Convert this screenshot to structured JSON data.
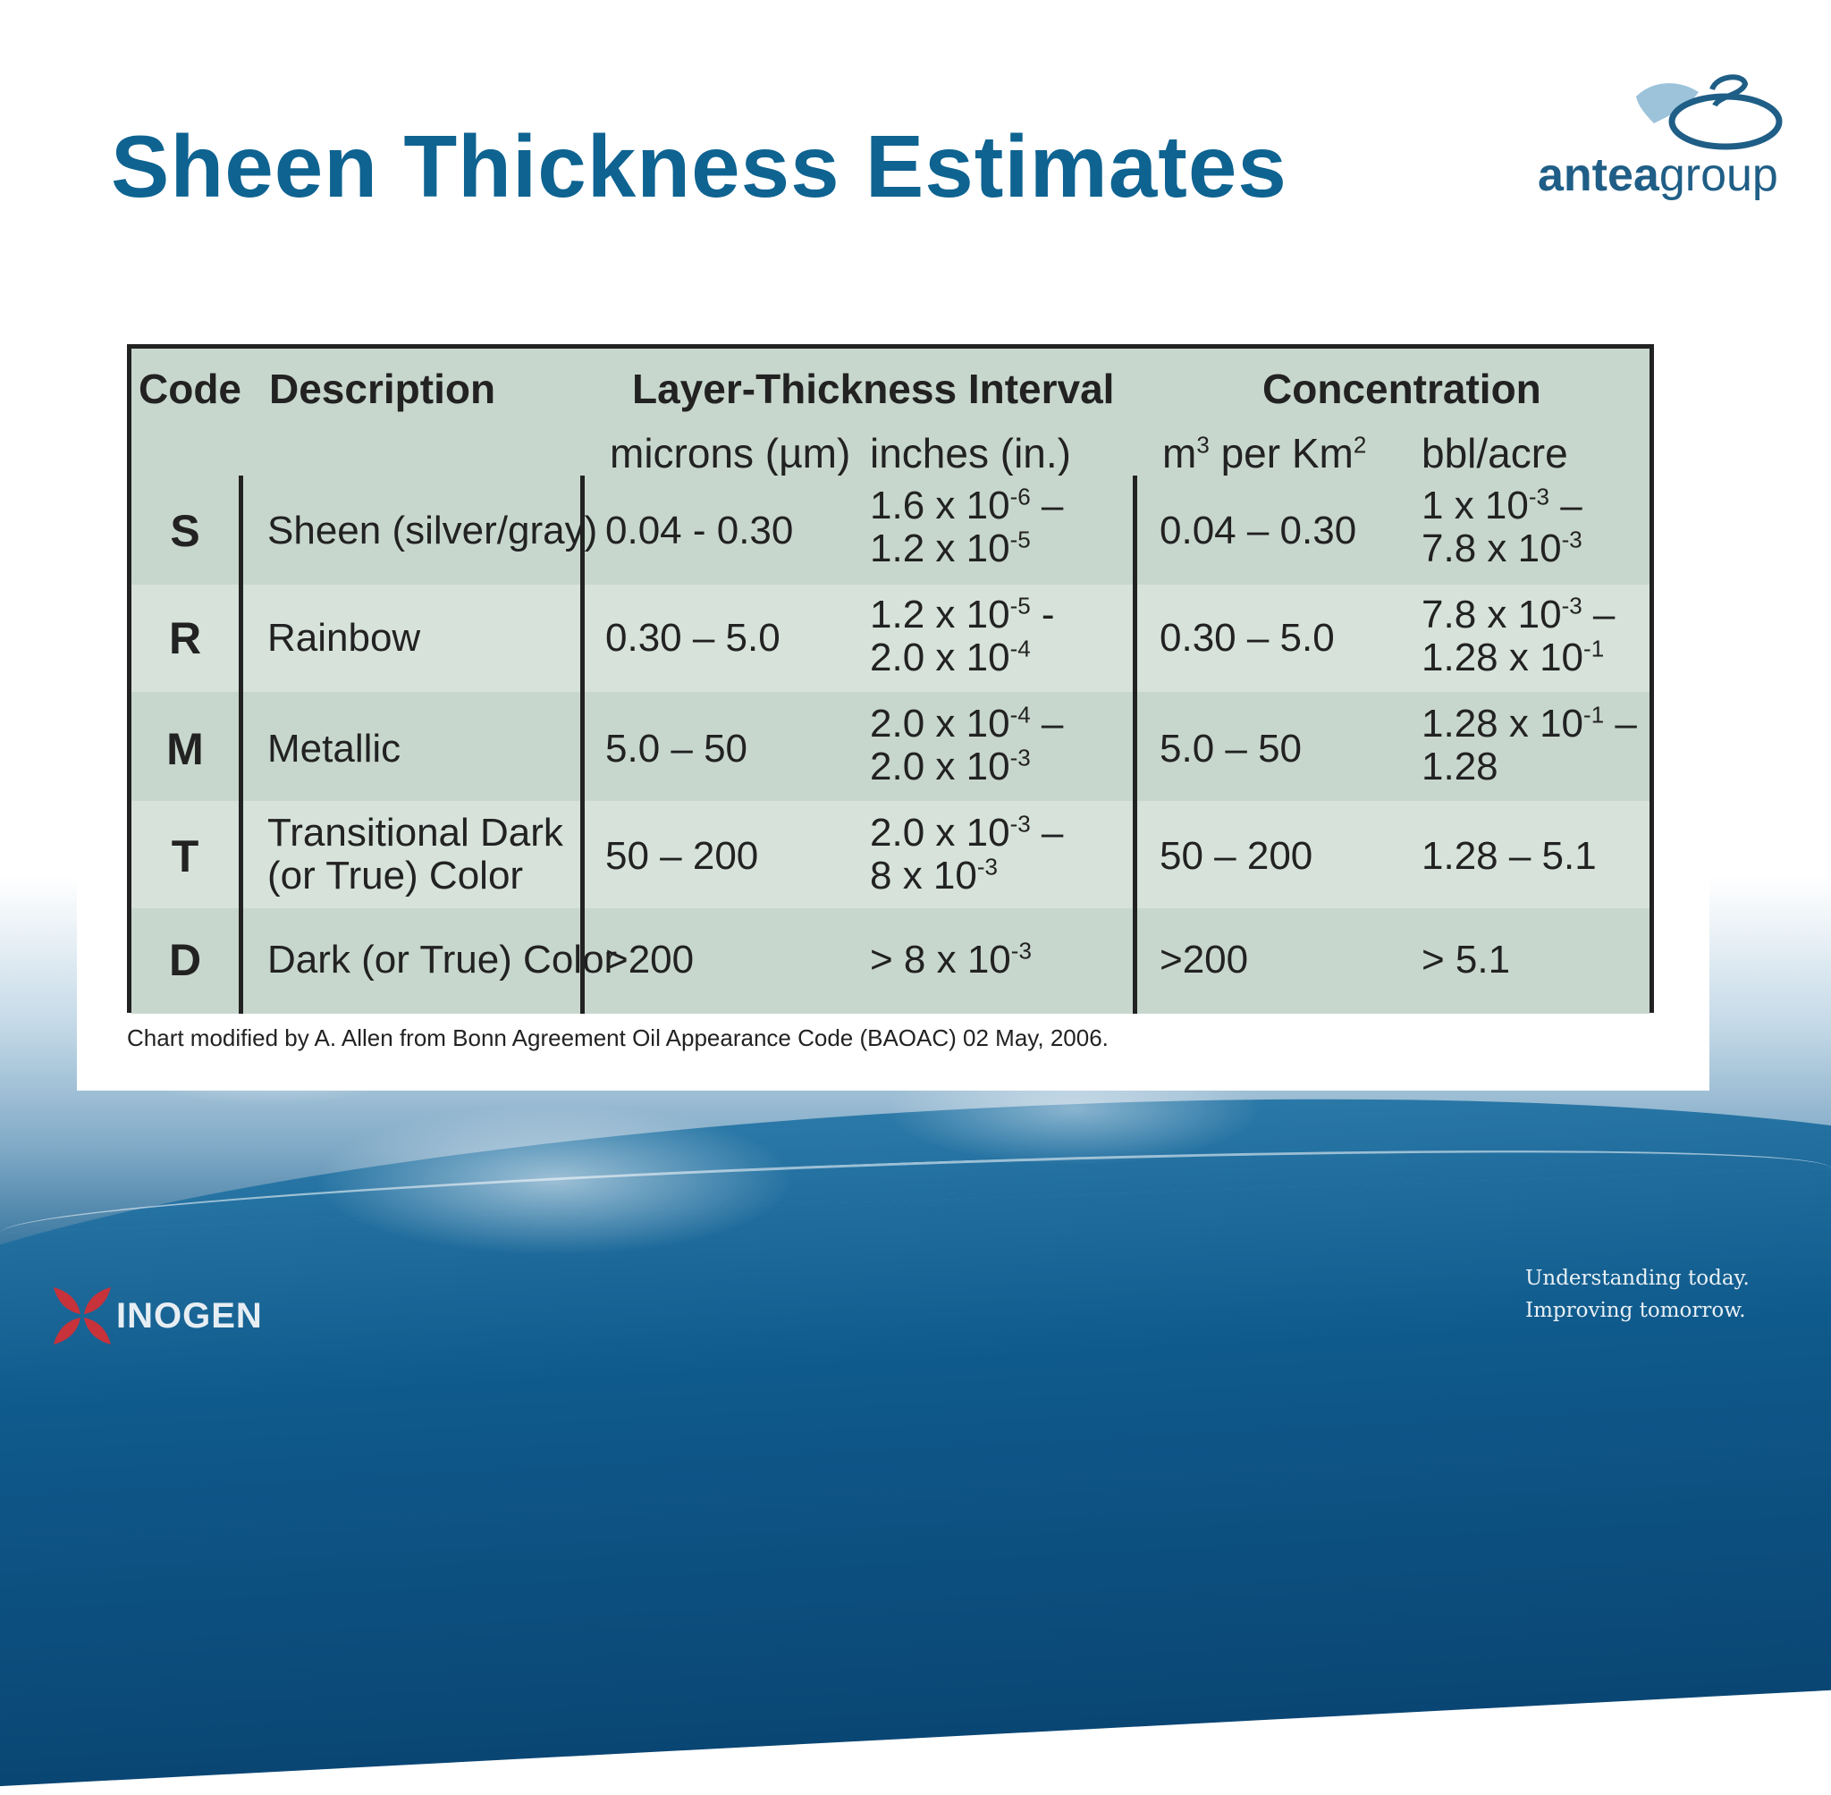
{
  "slide": {
    "title": "Sheen Thickness Estimates",
    "logo_text_bold": "antea",
    "logo_text": "group",
    "footer_logo_text": "INOGEN",
    "tagline_line1": "Understanding today.",
    "tagline_line2": "Improving tomorrow.",
    "caption": "Chart modified by A. Allen from Bonn Agreement Oil Appearance Code (BAOAC) 02 May, 2006."
  },
  "table": {
    "headers": {
      "code": "Code",
      "description": "Description",
      "layer_group": "Layer-Thickness Interval",
      "concentration_group": "Concentration",
      "microns": "microns (µm)",
      "inches": "inches (in.)",
      "m3_prefix": "m",
      "m3_exp": "3",
      "m3_mid": " per Km",
      "km_exp": "2",
      "bbl": "bbl/acre"
    },
    "rows": [
      {
        "code": "S",
        "description_1": "Sheen (silver/gray)",
        "description_2": "",
        "microns": "0.04 - 0.30",
        "in_a": "1.6 x 10",
        "in_a_exp": "-6",
        "in_a_tail": " –",
        "in_b": "1.2 x 10",
        "in_b_exp": "-5",
        "in_b_tail": "",
        "m3": "0.04 – 0.30",
        "bbl_a": "1 x 10",
        "bbl_a_exp": "-3",
        "bbl_a_tail": " –",
        "bbl_b": "7.8 x 10",
        "bbl_b_exp": "-3",
        "bbl_b_tail": ""
      },
      {
        "code": "R",
        "description_1": "Rainbow",
        "description_2": "",
        "microns": "0.30 – 5.0",
        "in_a": "1.2 x 10",
        "in_a_exp": "-5",
        "in_a_tail": " -",
        "in_b": "2.0 x 10",
        "in_b_exp": "-4",
        "in_b_tail": "",
        "m3": "0.30 – 5.0",
        "bbl_a": "7.8 x 10",
        "bbl_a_exp": "-3",
        "bbl_a_tail": " –",
        "bbl_b": "1.28 x 10",
        "bbl_b_exp": "-1",
        "bbl_b_tail": ""
      },
      {
        "code": "M",
        "description_1": "Metallic",
        "description_2": "",
        "microns": "5.0 – 50",
        "in_a": "2.0 x 10",
        "in_a_exp": "-4",
        "in_a_tail": " –",
        "in_b": "2.0 x 10",
        "in_b_exp": "-3",
        "in_b_tail": "",
        "m3": "5.0 – 50",
        "bbl_a": "1.28 x 10",
        "bbl_a_exp": "-1",
        "bbl_a_tail": " –",
        "bbl_b": "1.28",
        "bbl_b_exp": "",
        "bbl_b_tail": ""
      },
      {
        "code": "T",
        "description_1": "Transitional Dark",
        "description_2": "(or True) Color",
        "microns": "50 – 200",
        "in_a": "2.0 x 10",
        "in_a_exp": "-3",
        "in_a_tail": " –",
        "in_b": "8 x 10",
        "in_b_exp": "-3",
        "in_b_tail": "",
        "m3": "50 – 200",
        "bbl_single": "1.28 – 5.1"
      },
      {
        "code": "D",
        "description_1": "Dark (or True) Color",
        "description_2": "",
        "microns": ">200",
        "in_single": "> 8 x 10",
        "in_single_exp": "-3",
        "m3": ">200",
        "bbl_single": "> 5.1"
      }
    ]
  },
  "colors": {
    "title": "#0e6391",
    "header_fill": "#c8d7ce",
    "row_fill_light": "#d6e2da",
    "border": "#222222"
  }
}
